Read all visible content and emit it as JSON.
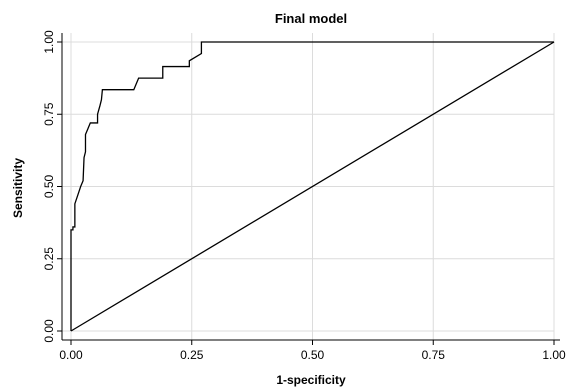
{
  "chart_data": {
    "type": "line",
    "title": "Final model",
    "xlabel": "1-specificity",
    "ylabel": "Sensitivity",
    "xlim": [
      0,
      1
    ],
    "ylim": [
      0,
      1
    ],
    "x_ticks": [
      0,
      0.25,
      0.5,
      0.75,
      1
    ],
    "y_ticks": [
      0,
      0.25,
      0.5,
      0.75,
      1
    ],
    "x_tick_labels": [
      "0.00",
      "0.25",
      "0.50",
      "0.75",
      "1.00"
    ],
    "y_tick_labels": [
      "0.00",
      "0.25",
      "0.50",
      "0.75",
      "1.00"
    ],
    "grid": true,
    "legend": "none",
    "series": [
      {
        "points": [
          [
            0,
            0
          ],
          [
            0,
            0.35
          ],
          [
            0.004,
            0.35
          ],
          [
            0.004,
            0.36
          ],
          [
            0.008,
            0.36
          ],
          [
            0.008,
            0.44
          ],
          [
            0.012,
            0.46
          ],
          [
            0.016,
            0.48
          ],
          [
            0.02,
            0.5
          ],
          [
            0.025,
            0.52
          ],
          [
            0.027,
            0.6
          ],
          [
            0.03,
            0.62
          ],
          [
            0.03,
            0.68
          ],
          [
            0.035,
            0.7
          ],
          [
            0.04,
            0.72
          ],
          [
            0.055,
            0.72
          ],
          [
            0.055,
            0.75
          ],
          [
            0.06,
            0.78
          ],
          [
            0.063,
            0.8
          ],
          [
            0.065,
            0.835
          ],
          [
            0.13,
            0.835
          ],
          [
            0.14,
            0.875
          ],
          [
            0.19,
            0.875
          ],
          [
            0.19,
            0.915
          ],
          [
            0.245,
            0.915
          ],
          [
            0.245,
            0.935
          ],
          [
            0.26,
            0.95
          ],
          [
            0.27,
            0.96
          ],
          [
            0.27,
            1.0
          ],
          [
            1.0,
            1.0
          ]
        ],
        "color": "#000000"
      },
      {
        "points": [
          [
            0,
            0
          ],
          [
            1,
            1
          ]
        ],
        "color": "#000000"
      }
    ]
  }
}
